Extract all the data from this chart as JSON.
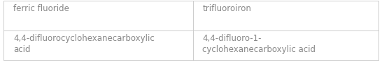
{
  "cells": [
    [
      "ferric fluoride",
      "trifluoroiron"
    ],
    [
      "4,4-difluorocyclohexanecarboxylic\nacid",
      "4,4-difluoro-1-\ncyclohexanecarboxylic acid"
    ]
  ],
  "text_color": "#888888",
  "border_color": "#cccccc",
  "background_color": "#ffffff",
  "font_size": 8.5,
  "figsize": [
    5.46,
    0.88
  ],
  "dpi": 100,
  "col_split": 0.505
}
